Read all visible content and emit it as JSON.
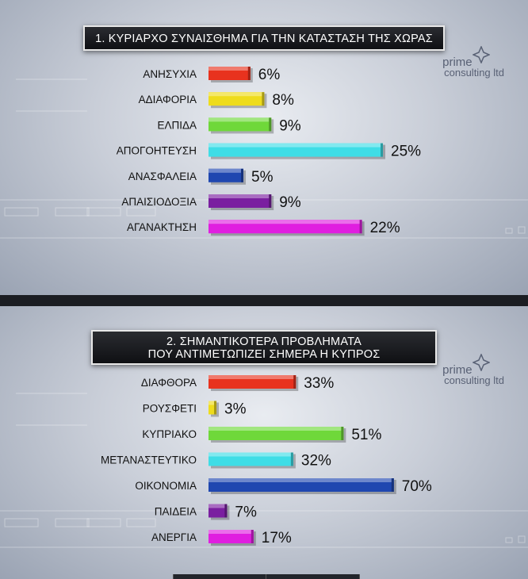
{
  "colors": {
    "red": "#e8321e",
    "yellow": "#eedc1c",
    "green": "#6fd83a",
    "cyan": "#3fdde6",
    "blue": "#1f47b0",
    "purple": "#7a1fa0",
    "magenta": "#e01ee0"
  },
  "logo": {
    "line1": "prime",
    "line2": "consulting ltd"
  },
  "chart_data": [
    {
      "type": "bar",
      "orientation": "horizontal",
      "title": "1. ΚΥΡΙΑΡΧΟ ΣΥΝΑΙΣΘΗΜΑ ΓΙΑ ΤΗΝ ΚΑΤΑΣΤΑΣΗ ΤΗΣ ΧΩΡΑΣ",
      "title_lines": [
        "1. ΚΥΡΙΑΡΧΟ ΣΥΝΑΙΣΘΗΜΑ ΓΙΑ ΤΗΝ ΚΑΤΑΣΤΑΣΗ ΤΗΣ ΧΩΡΑΣ"
      ],
      "categories": [
        "ΑΝΗΣΥΧΙΑ",
        "ΑΔΙΑΦΟΡΙΑ",
        "ΕΛΠΙΔΑ",
        "ΑΠΟΓΟΗΤΕΥΣΗ",
        "ΑΝΑΣΦΑΛΕΙΑ",
        "ΑΠΑΙΣΙΟΔΟΞΙΑ",
        "ΑΓΑΝΑΚΤΗΣΗ"
      ],
      "values": [
        6,
        8,
        9,
        25,
        5,
        9,
        22
      ],
      "value_labels": [
        "6%",
        "8%",
        "9%",
        "25%",
        "5%",
        "9%",
        "22%"
      ],
      "bar_colors": [
        "red",
        "yellow",
        "green",
        "cyan",
        "blue",
        "purple",
        "magenta"
      ],
      "unit": "%"
    },
    {
      "type": "bar",
      "orientation": "horizontal",
      "title": "2. ΣΗΜΑΝΤΙΚΟΤΕΡΑ ΠΡΟΒΛΗΜΑΤΑ ΠΟΥ ΑΝΤΙΜΕΤΩΠΙΖΕΙ ΣΗΜΕΡΑ Η ΚΥΠΡΟΣ",
      "title_lines": [
        "2. ΣΗΜΑΝΤΙΚΟΤΕΡΑ ΠΡΟΒΛΗΜΑΤΑ",
        "ΠΟΥ ΑΝΤΙΜΕΤΩΠΙΖΕΙ ΣΗΜΕΡΑ Η ΚΥΠΡΟΣ"
      ],
      "categories": [
        "ΔΙΑΦΘΟΡΑ",
        "ΡΟΥΣΦΕΤΙ",
        "ΚΥΠΡΙΑΚΟ",
        "ΜΕΤΑΝΑΣΤΕΥΤΙΚΟ",
        "ΟΙΚΟΝΟΜΙΑ",
        "ΠΑΙΔΕΙΑ",
        "ΑΝΕΡΓΙΑ"
      ],
      "values": [
        33,
        3,
        51,
        32,
        70,
        7,
        17
      ],
      "value_labels": [
        "33%",
        "3%",
        "51%",
        "32%",
        "70%",
        "7%",
        "17%"
      ],
      "bar_colors": [
        "red",
        "yellow",
        "green",
        "cyan",
        "blue",
        "purple",
        "magenta"
      ],
      "unit": "%"
    }
  ]
}
